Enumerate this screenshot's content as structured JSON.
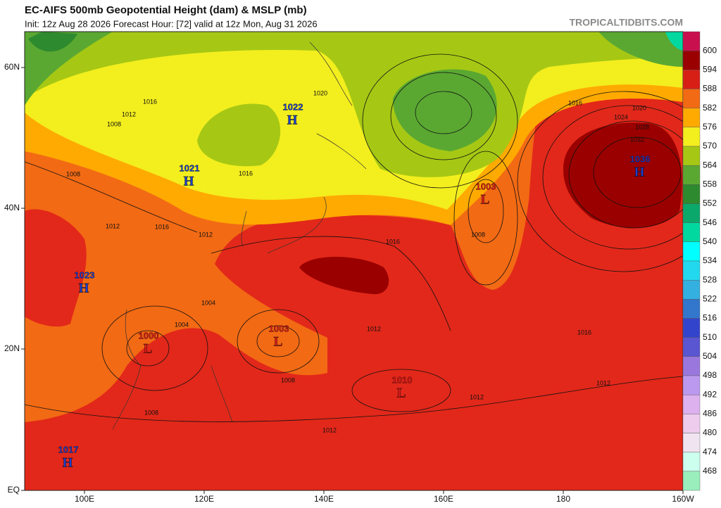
{
  "header": {
    "title": "EC-AIFS 500mb Geopotential Height (dam) & MSLP (mb)",
    "subtitle": "Init: 12z Aug 28 2026   Forecast Hour: [72]   valid at 12z Mon, Aug 31 2026",
    "watermark": "TROPICALTIDBITS.COM"
  },
  "axes": {
    "lat_labels": [
      "60N",
      "40N",
      "20N",
      "EQ"
    ],
    "lon_labels": [
      "100E",
      "120E",
      "140E",
      "160E",
      "180",
      "160W"
    ]
  },
  "colorbar": {
    "labels": [
      "600",
      "594",
      "588",
      "582",
      "576",
      "570",
      "564",
      "558",
      "552",
      "546",
      "540",
      "534",
      "528",
      "522",
      "516",
      "510",
      "504",
      "498",
      "492",
      "486",
      "480",
      "474",
      "468"
    ],
    "colors": [
      "#c8104e",
      "#9a0000",
      "#d81f16",
      "#f26a14",
      "#ffaa00",
      "#f3ee1e",
      "#a6c814",
      "#5aa832",
      "#2e8a2e",
      "#0aa86a",
      "#00d8a0",
      "#00ffff",
      "#22d8ee",
      "#33b0e0",
      "#3377cc",
      "#3344cc",
      "#5a55d0",
      "#9a77dd",
      "#bb99ee",
      "#ddb0ee",
      "#eeccee",
      "#f0e4f0",
      "#ccffee",
      "#99eebb"
    ]
  },
  "centers": [
    {
      "type": "H",
      "value": "1022",
      "color": "#1a3fd0"
    },
    {
      "type": "H",
      "value": "1021",
      "color": "#1a3fd0"
    },
    {
      "type": "H",
      "value": "1023",
      "color": "#1a3fd0"
    },
    {
      "type": "L",
      "value": "1000",
      "color": "#d81a1a"
    },
    {
      "type": "L",
      "value": "1003",
      "color": "#d81a1a"
    },
    {
      "type": "L",
      "value": "1003",
      "color": "#d81a1a"
    },
    {
      "type": "L",
      "value": "1010",
      "color": "#d81a1a"
    },
    {
      "type": "H",
      "value": "1036",
      "color": "#1a3fd0"
    },
    {
      "type": "H",
      "value": "1017",
      "color": "#1a3fd0"
    }
  ],
  "isobar_labels": [
    "1016",
    "1012",
    "1008",
    "1020",
    "1016",
    "1012",
    "1016",
    "1008",
    "1012",
    "1016",
    "1012",
    "1020",
    "1024",
    "1028",
    "1032",
    "1016",
    "1012",
    "1012",
    "1008",
    "1004",
    "1008",
    "1012",
    "1016",
    "1008",
    "1004"
  ]
}
